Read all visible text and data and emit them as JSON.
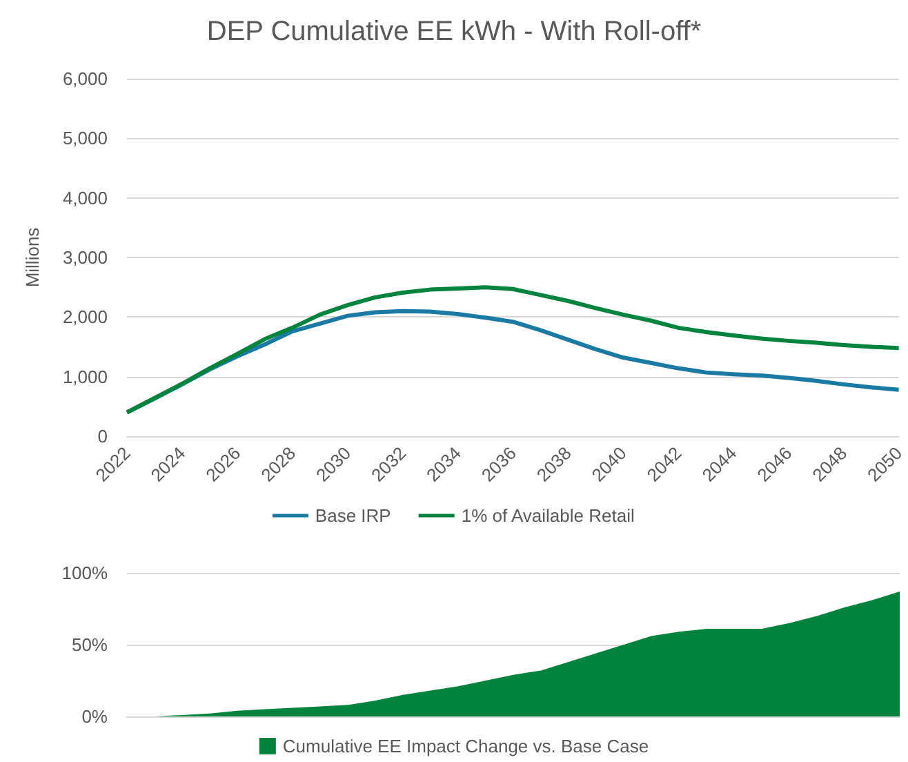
{
  "chart_data": [
    {
      "type": "line",
      "title": "DEP Cumulative EE kWh - With Roll-off*",
      "ylabel": "Millions",
      "x": [
        2022,
        2023,
        2024,
        2025,
        2026,
        2027,
        2028,
        2029,
        2030,
        2031,
        2032,
        2033,
        2034,
        2035,
        2036,
        2037,
        2038,
        2039,
        2040,
        2041,
        2042,
        2043,
        2044,
        2045,
        2046,
        2047,
        2048,
        2049,
        2050
      ],
      "series": [
        {
          "name": "Base IRP",
          "color": "#1a7aa3",
          "values": [
            400,
            630,
            870,
            1120,
            1340,
            1540,
            1760,
            1890,
            2020,
            2080,
            2100,
            2090,
            2050,
            1990,
            1920,
            1780,
            1620,
            1460,
            1320,
            1230,
            1140,
            1070,
            1040,
            1020,
            980,
            930,
            870,
            820,
            780
          ]
        },
        {
          "name": "1% of Available Retail",
          "color": "#00843d",
          "values": [
            400,
            640,
            880,
            1140,
            1380,
            1630,
            1820,
            2040,
            2200,
            2330,
            2410,
            2460,
            2480,
            2500,
            2470,
            2370,
            2270,
            2150,
            2040,
            1940,
            1820,
            1750,
            1690,
            1640,
            1600,
            1570,
            1530,
            1500,
            1480
          ]
        }
      ],
      "xlim": [
        2022,
        2050
      ],
      "xticks": [
        2022,
        2024,
        2026,
        2028,
        2030,
        2032,
        2034,
        2036,
        2038,
        2040,
        2042,
        2044,
        2046,
        2048,
        2050
      ],
      "ylim": [
        0,
        6000
      ],
      "yticks": [
        {
          "value": 0,
          "label": "0"
        },
        {
          "value": 1000,
          "label": "1,000"
        },
        {
          "value": 2000,
          "label": "2,000"
        },
        {
          "value": 3000,
          "label": "3,000"
        },
        {
          "value": 4000,
          "label": "4,000"
        },
        {
          "value": 5000,
          "label": "5,000"
        },
        {
          "value": 6000,
          "label": "6,000"
        }
      ],
      "grid": "y",
      "legend": "bottom",
      "marker": "none"
    },
    {
      "type": "area",
      "x": [
        2022,
        2023,
        2024,
        2025,
        2026,
        2027,
        2028,
        2029,
        2030,
        2031,
        2032,
        2033,
        2034,
        2035,
        2036,
        2037,
        2038,
        2039,
        2040,
        2041,
        2042,
        2043,
        2044,
        2045,
        2046,
        2047,
        2048,
        2049,
        2050
      ],
      "series": [
        {
          "name": "Cumulative EE Impact Change vs. Base Case",
          "color": "#00843d",
          "values": [
            0,
            0,
            1,
            2,
            4,
            5,
            6,
            7,
            8,
            11,
            15,
            18,
            21,
            25,
            29,
            32,
            38,
            44,
            50,
            56,
            59,
            61,
            61,
            61,
            65,
            70,
            76,
            81,
            87
          ]
        }
      ],
      "xlim": [
        2022,
        2050
      ],
      "ylim": [
        0,
        100
      ],
      "yticks": [
        {
          "value": 0,
          "label": "0%"
        },
        {
          "value": 50,
          "label": "50%"
        },
        {
          "value": 100,
          "label": "100%"
        }
      ],
      "grid": "y",
      "legend": "bottom",
      "tick_labels": "y"
    }
  ]
}
